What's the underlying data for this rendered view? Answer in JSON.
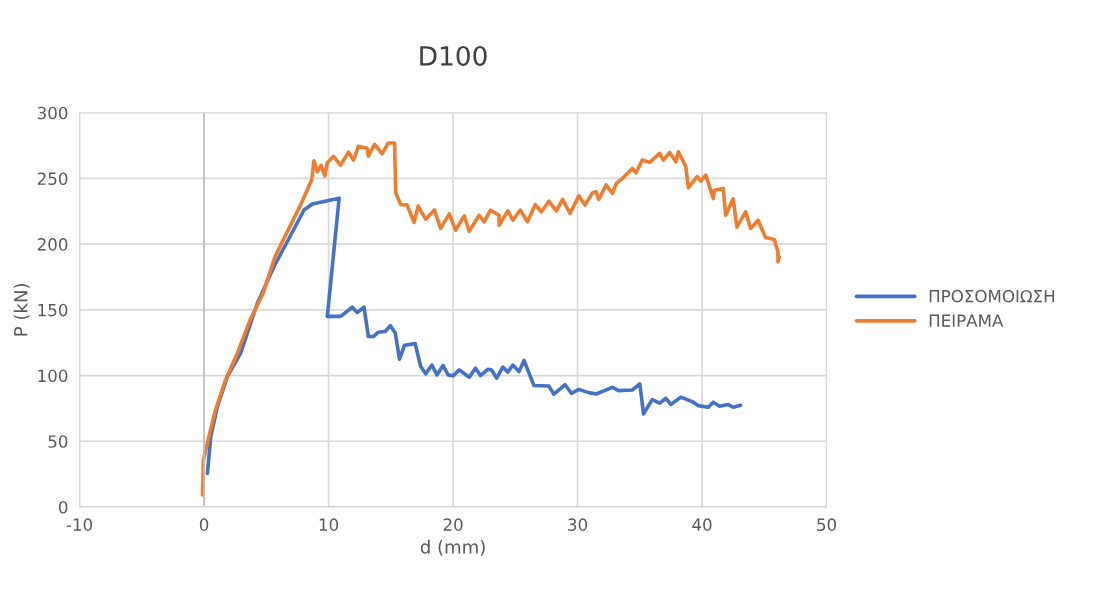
{
  "chart_data": {
    "type": "line",
    "title": "D100",
    "xlabel": "d (mm)",
    "ylabel": "P (kN)",
    "xlim": [
      -10,
      50
    ],
    "xticks": [
      -10,
      0,
      10,
      20,
      30,
      40,
      50
    ],
    "ylim": [
      0,
      300
    ],
    "yticks": [
      0,
      50,
      100,
      150,
      200,
      250,
      300
    ],
    "grid": true,
    "legend": "right",
    "marker": "none",
    "line_style": "solid",
    "series": [
      {
        "name": "ΠΡΟΣΟΜΟΙΩΣΗ",
        "color": "#4472c4",
        "x": [
          0.27,
          0.54,
          1.07,
          1.87,
          2.94,
          4.28,
          5.62,
          6.69,
          8.03,
          8.7,
          10.85,
          9.9,
          10.97,
          11.9,
          12.3,
          12.85,
          13.2,
          13.6,
          14.0,
          14.56,
          14.96,
          15.36,
          15.7,
          16.1,
          16.96,
          17.4,
          17.8,
          18.3,
          18.7,
          19.2,
          19.6,
          20.0,
          20.5,
          21.3,
          21.8,
          22.2,
          22.8,
          23.1,
          23.5,
          24.0,
          24.4,
          24.8,
          25.3,
          25.7,
          26.5,
          27.7,
          28.1,
          29.0,
          29.5,
          30.1,
          30.9,
          31.5,
          32.8,
          33.3,
          34.4,
          35.0,
          35.3,
          36.0,
          36.6,
          37.1,
          37.5,
          38.3,
          39.2,
          39.7,
          40.5,
          40.9,
          41.4,
          42.1,
          42.5,
          43.1
        ],
        "values": [
          25.6,
          53.6,
          76.4,
          99.2,
          117,
          155,
          183,
          202,
          226,
          230.5,
          235,
          145,
          145,
          152,
          148,
          152,
          129.7,
          129.7,
          133,
          133.5,
          138,
          132.4,
          112.5,
          123,
          124.3,
          106.9,
          101.3,
          108,
          100.5,
          107.6,
          100.5,
          99.8,
          104.3,
          98.7,
          105.6,
          100,
          104.8,
          104.3,
          98,
          106.4,
          102.6,
          108,
          103,
          111.5,
          92.4,
          92,
          85.8,
          93,
          86.5,
          89.5,
          87,
          86,
          91,
          88.5,
          89,
          93.7,
          70.8,
          81.7,
          79,
          82.7,
          78,
          83.6,
          80.2,
          77.1,
          75.9,
          79.7,
          76.6,
          77.9,
          75.9,
          77.4
        ]
      },
      {
        "name": "ΠΕΙΡΑΜΑ",
        "color": "#ed7d31",
        "x": [
          -0.13,
          -0.05,
          0.35,
          0.88,
          1.68,
          2.62,
          3.69,
          4.76,
          5.7,
          6.9,
          7.7,
          8.65,
          8.83,
          9.1,
          9.4,
          9.7,
          9.9,
          10.4,
          10.97,
          11.6,
          12.0,
          12.4,
          13.1,
          13.2,
          13.7,
          14.3,
          14.8,
          15.3,
          15.4,
          15.8,
          16.3,
          16.86,
          17.2,
          17.8,
          18.5,
          19.0,
          19.7,
          20.2,
          20.9,
          21.3,
          22.1,
          22.5,
          23.0,
          23.7,
          23.7,
          24.4,
          24.8,
          25.4,
          25.98,
          26.6,
          27.1,
          27.7,
          28.3,
          28.8,
          29.4,
          30.1,
          30.6,
          31.2,
          31.5,
          31.7,
          32.3,
          32.8,
          33.1,
          33.6,
          34.4,
          34.7,
          35.2,
          35.8,
          36.6,
          36.9,
          37.4,
          37.9,
          38.1,
          38.7,
          38.9,
          39.6,
          39.9,
          40.3,
          40.9,
          41.0,
          41.7,
          41.9,
          42.5,
          42.8,
          43.5,
          43.9,
          44.5,
          45.1,
          45.8,
          46.1,
          46.1,
          46.2
        ],
        "values": [
          9.1,
          35.8,
          52,
          72.6,
          95.5,
          115.8,
          142,
          162.8,
          190.6,
          213.5,
          228.7,
          249,
          263.5,
          255,
          260,
          252,
          262,
          266.8,
          260,
          270,
          264,
          274.4,
          273,
          267,
          276,
          268.7,
          277,
          277,
          239,
          230,
          230,
          216.5,
          229,
          219,
          226,
          212,
          223,
          210.6,
          221.5,
          209.8,
          222,
          217,
          225.9,
          222,
          214.4,
          225.3,
          218.2,
          225.9,
          217,
          230,
          224.6,
          232.7,
          225.1,
          234,
          223.3,
          236.8,
          229.7,
          239,
          239.8,
          234,
          245,
          238.6,
          246,
          250,
          257.6,
          254.3,
          264,
          262.2,
          269,
          264,
          269.8,
          262.7,
          270.3,
          258.9,
          243,
          251.3,
          248,
          252.5,
          234.7,
          241,
          242.4,
          222,
          234.5,
          213,
          224.6,
          211.9,
          218.2,
          205,
          203.5,
          194,
          186.5,
          190.3
        ]
      }
    ]
  }
}
